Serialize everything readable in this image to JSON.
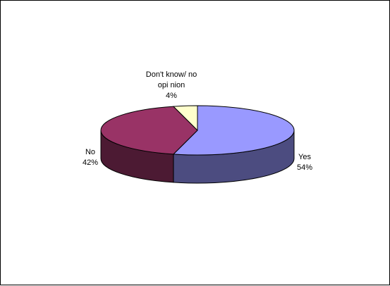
{
  "chart_data": {
    "type": "pie",
    "style": "3d",
    "categories": [
      "Yes",
      "No",
      "Don't know/ no opinion"
    ],
    "values": [
      54,
      42,
      4
    ],
    "value_labels": [
      "54%",
      "42%",
      "4%"
    ],
    "label_lines": [
      [
        "Yes",
        "54%"
      ],
      [
        "No",
        "42%"
      ],
      [
        "Don't know/ no",
        "opi nion",
        "4%"
      ]
    ],
    "colors": {
      "top": [
        "#9999ff",
        "#993366",
        "#ffffcc"
      ],
      "side": [
        "#4c4c80",
        "#4c1a33",
        "#80806a"
      ]
    },
    "legend": "none",
    "title": ""
  }
}
